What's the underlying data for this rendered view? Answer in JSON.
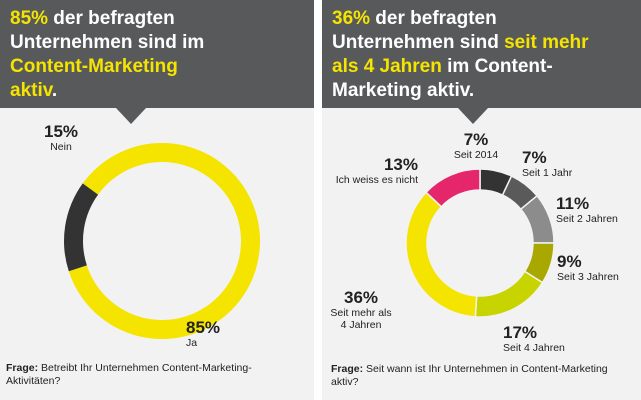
{
  "left": {
    "headline": {
      "line1_highlight": "85%",
      "line1_rest": " der befragten",
      "line2": "Unternehmen sind im",
      "line3_highlight": "Content-Marketing",
      "line4_highlight": "aktiv",
      "line4_rest": "."
    },
    "question_label": "Frage:",
    "question_text": "Betreibt Ihr Unternehmen Content-Marketing-Aktivitäten?"
  },
  "right": {
    "headline": {
      "line1_highlight": "36%",
      "line1_rest": " der befragten",
      "line2_start": "Unternehmen sind ",
      "line2_highlight": "seit mehr",
      "line3_highlight": "als 4 Jahren",
      "line3_rest": " im Content-",
      "line4": "Marketing aktiv."
    },
    "question_label": "Frage:",
    "question_text": "Seit wann ist Ihr Unternehmen in Content-Marketing aktiv?"
  },
  "colors": {
    "callout": "#58595b",
    "highlight": "#f4e400",
    "panel": "#f2f2f2"
  },
  "chart_data": [
    {
      "type": "pie",
      "subtype": "donut",
      "title": "Betreibt Ihr Unternehmen Content-Marketing-Aktivitäten?",
      "slices": [
        {
          "label": "Ja",
          "value": 85,
          "display": "85%",
          "color": "#f4e400"
        },
        {
          "label": "Nein",
          "value": 15,
          "display": "15%",
          "color": "#333333"
        }
      ]
    },
    {
      "type": "pie",
      "subtype": "donut",
      "title": "Seit wann ist Ihr Unternehmen in Content-Marketing aktiv?",
      "slices": [
        {
          "label": "Seit 2014",
          "value": 7,
          "display": "7%",
          "color": "#333333"
        },
        {
          "label": "Seit 1 Jahr",
          "value": 7,
          "display": "7%",
          "color": "#5a5a5a"
        },
        {
          "label": "Seit 2 Jahren",
          "value": 11,
          "display": "11%",
          "color": "#8c8c8c"
        },
        {
          "label": "Seit 3 Jahren",
          "value": 9,
          "display": "9%",
          "color": "#a8a800"
        },
        {
          "label": "Seit 4 Jahren",
          "value": 17,
          "display": "17%",
          "color": "#c8d400"
        },
        {
          "label": "Seit mehr als 4 Jahren",
          "value": 36,
          "display": "36%",
          "color": "#f4e400"
        },
        {
          "label": "Ich weiss es nicht",
          "value": 13,
          "display": "13%",
          "color": "#e5266a"
        }
      ]
    }
  ]
}
